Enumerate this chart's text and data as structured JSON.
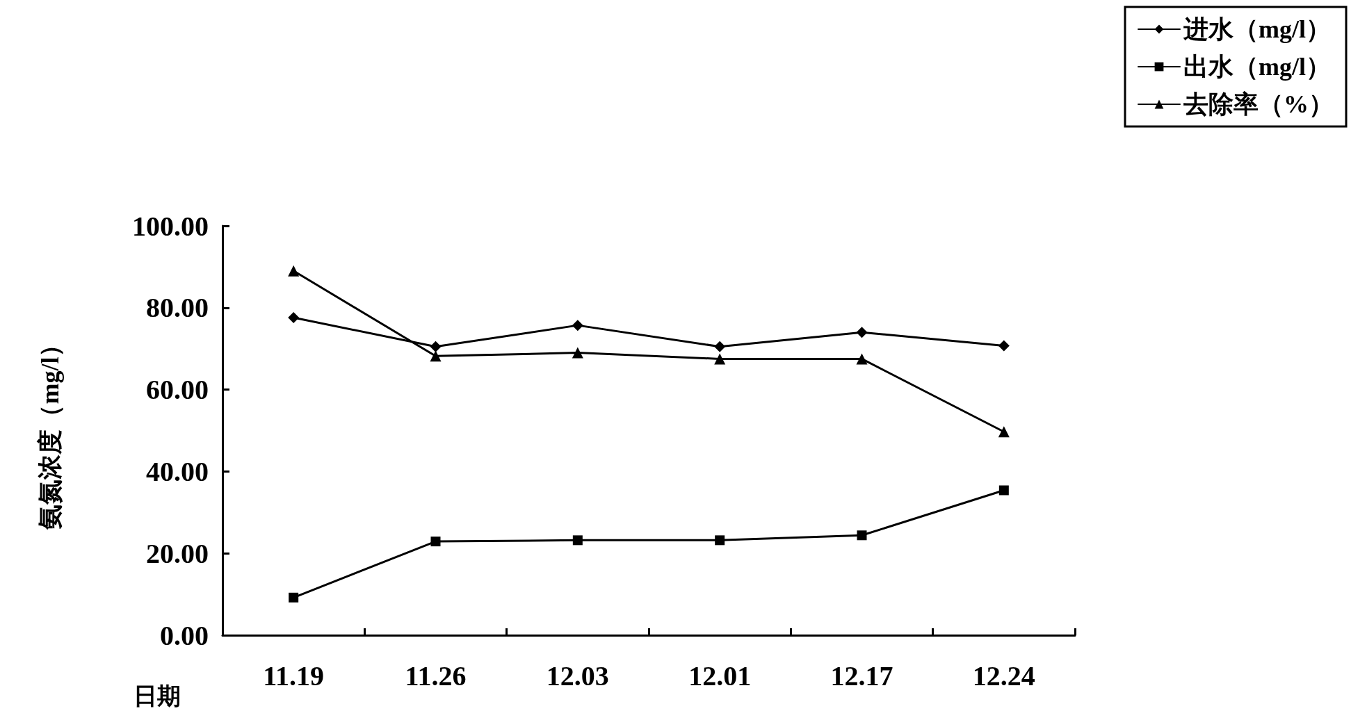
{
  "chart_data": {
    "type": "line",
    "xlabel": "日期",
    "ylabel": "氨氮浓度（mg/l）",
    "categories": [
      "11.19",
      "11.26",
      "12.03",
      "12.01",
      "12.17",
      "12.24"
    ],
    "series": [
      {
        "name": "进水（mg/l）",
        "color": "#000000",
        "marker": "diamond",
        "values": [
          77.6,
          70.5,
          75.7,
          70.5,
          74.0,
          70.7
        ]
      },
      {
        "name": "出水（mg/l）",
        "color": "#000000",
        "marker": "square",
        "values": [
          9.2,
          22.9,
          23.2,
          23.2,
          24.4,
          35.4
        ]
      },
      {
        "name": "去除率（%）",
        "color": "#000000",
        "marker": "triangle",
        "values": [
          89.0,
          68.2,
          69.0,
          67.5,
          67.5,
          49.7
        ]
      }
    ],
    "ylim": [
      0,
      100
    ],
    "yticks": [
      {
        "value": 0,
        "label": "0.00"
      },
      {
        "value": 20,
        "label": "20.00"
      },
      {
        "value": 40,
        "label": "40.00"
      },
      {
        "value": 60,
        "label": "60.00"
      },
      {
        "value": 80,
        "label": "80.00"
      },
      {
        "value": 100,
        "label": "100.00"
      }
    ],
    "grid": false,
    "legend": "top right",
    "line_style": "solid"
  }
}
